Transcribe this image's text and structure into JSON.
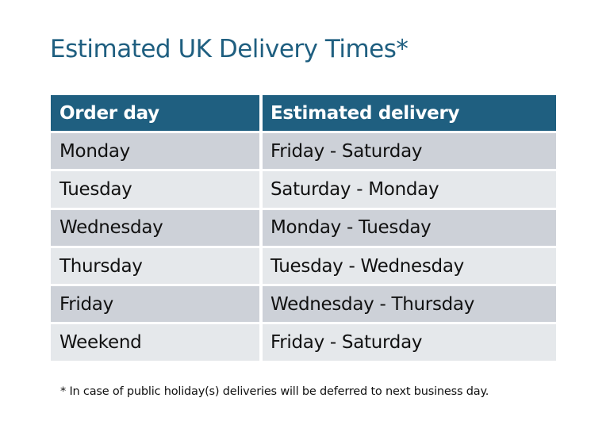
{
  "title": "Estimated UK Delivery Times*",
  "table": {
    "headers": [
      "Order day",
      "Estimated delivery"
    ],
    "rows": [
      [
        "Monday",
        "Friday - Saturday"
      ],
      [
        "Tuesday",
        "Saturday - Monday"
      ],
      [
        "Wednesday",
        "Monday - Tuesday"
      ],
      [
        "Thursday",
        "Tuesday - Wednesday"
      ],
      [
        "Friday",
        "Wednesday - Thursday"
      ],
      [
        "Weekend",
        "Friday - Saturday"
      ]
    ]
  },
  "footnote": "* In case of public holiday(s) deliveries will be deferred to next business day.",
  "colors": {
    "header": "#1f5f80",
    "row_odd": "#cdd1d8",
    "row_even": "#e5e8eb"
  }
}
